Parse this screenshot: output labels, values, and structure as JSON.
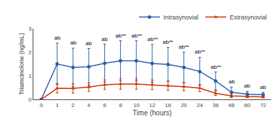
{
  "chart_data": {
    "type": "line",
    "xlabel": "Time (hours)",
    "ylabel": "Triamcinolone (ng/mL)",
    "categories": [
      "0",
      "1",
      "2",
      "4",
      "6",
      "8",
      "10",
      "12",
      "16",
      "20",
      "24",
      "36",
      "48",
      "60",
      "72"
    ],
    "series": [
      {
        "name": "Intrasynovial",
        "color": "#2b5faa",
        "marker": "circle",
        "line_style": "solid",
        "values": [
          0.0,
          1.5,
          1.35,
          1.38,
          1.53,
          1.63,
          1.63,
          1.52,
          1.48,
          1.35,
          1.18,
          0.78,
          0.3,
          0.22,
          0.2
        ],
        "errors": [
          0.0,
          0.88,
          0.82,
          0.78,
          0.8,
          0.85,
          0.85,
          0.8,
          0.72,
          0.65,
          0.6,
          0.38,
          0.22,
          0.12,
          0.1
        ]
      },
      {
        "name": "Extrasynovial",
        "color": "#cc3300",
        "marker": "triangle-up",
        "line_style": "solid",
        "values": [
          0.0,
          0.47,
          0.46,
          0.52,
          0.62,
          0.65,
          0.65,
          0.62,
          0.58,
          0.54,
          0.48,
          0.26,
          0.15,
          0.12,
          0.1
        ],
        "errors": [
          0.0,
          0.2,
          0.2,
          0.18,
          0.2,
          0.22,
          0.22,
          0.2,
          0.2,
          0.18,
          0.15,
          0.1,
          0.06,
          0.05,
          0.04
        ]
      }
    ],
    "annotations": [
      {
        "text": "ab",
        "x": "1",
        "y": 2.38
      },
      {
        "text": "ab",
        "x": "2",
        "y": 2.17
      },
      {
        "text": "ab",
        "x": "4",
        "y": 2.16
      },
      {
        "text": "ab",
        "x": "6",
        "y": 2.33
      },
      {
        "text": "ab",
        "x": "48",
        "y": 0.52
      },
      {
        "text": "ab",
        "x": "60",
        "y": 0.34
      },
      {
        "text": "ab",
        "x": "72",
        "y": 0.3
      },
      {
        "text": "ab**",
        "x": "8",
        "y": 2.48
      },
      {
        "text": "ab**",
        "x": "10",
        "y": 2.48
      },
      {
        "text": "ab**",
        "x": "12",
        "y": 2.32
      },
      {
        "text": "ab**",
        "x": "16",
        "y": 2.2
      },
      {
        "text": "ab**",
        "x": "20",
        "y": 2.0
      },
      {
        "text": "ab**",
        "x": "24",
        "y": 1.78
      },
      {
        "text": "ab**",
        "x": "36",
        "y": 1.16
      }
    ],
    "ylim": [
      0,
      3.0
    ],
    "yticks": [
      0,
      1,
      2,
      3
    ],
    "grid": false,
    "legend": "upper right"
  }
}
